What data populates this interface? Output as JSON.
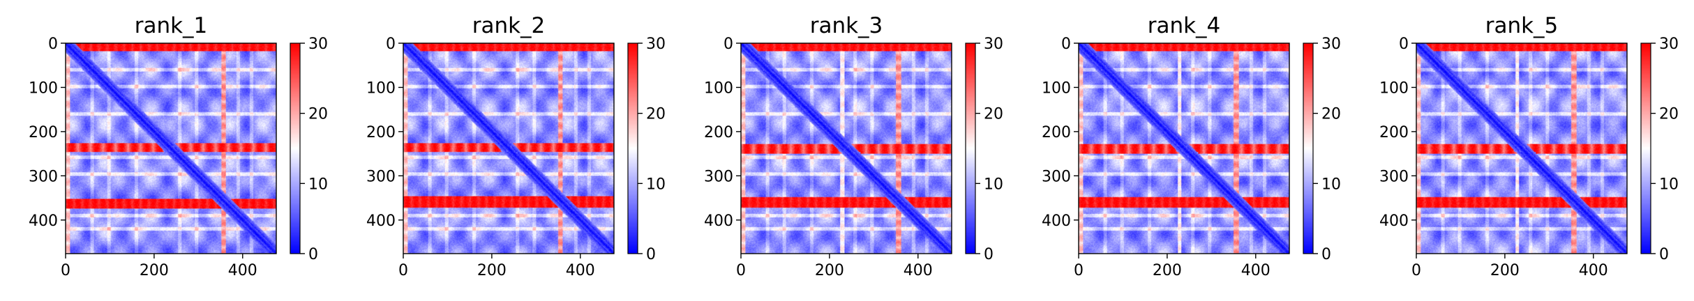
{
  "chart_data": [
    {
      "type": "heatmap",
      "title": "rank_1",
      "x_ticks": [
        0,
        200,
        400
      ],
      "y_ticks": [
        0,
        100,
        200,
        300,
        400
      ],
      "xlim": [
        0,
        476
      ],
      "ylim": [
        476,
        0
      ],
      "colorbar": {
        "ticks": [
          0,
          10,
          20,
          30
        ],
        "range": [
          0,
          30
        ],
        "colormap": "bwr"
      },
      "features": {
        "bright_rows": [
          [
            0,
            18
          ],
          [
            352,
            374
          ]
        ],
        "medium_rows": [
          [
            226,
            246
          ]
        ],
        "stripe_rows": [
          60,
          98,
          160,
          258,
          296,
          390,
          420
        ],
        "bright_cols": [
          [
            352,
            362
          ]
        ],
        "bright_cols_dim": [
          [
            0,
            10
          ]
        ],
        "mid_cols": [],
        "diagonal_kink": [
          350,
          360
        ]
      }
    },
    {
      "type": "heatmap",
      "title": "rank_2",
      "x_ticks": [
        0,
        200,
        400
      ],
      "y_ticks": [
        0,
        100,
        200,
        300,
        400
      ],
      "xlim": [
        0,
        476
      ],
      "ylim": [
        476,
        0
      ],
      "colorbar": {
        "ticks": [
          0,
          10,
          20,
          30
        ],
        "range": [
          0,
          30
        ],
        "colormap": "bwr"
      },
      "features": {
        "bright_rows": [
          [
            0,
            18
          ],
          [
            346,
            372
          ]
        ],
        "medium_rows": [
          [
            226,
            246
          ]
        ],
        "stripe_rows": [
          60,
          98,
          160,
          258,
          296,
          390,
          420
        ],
        "bright_cols": [
          [
            350,
            360
          ]
        ],
        "bright_cols_dim": [
          [
            0,
            10
          ]
        ],
        "mid_cols": [],
        "diagonal_kink": [
          340,
          360
        ]
      }
    },
    {
      "type": "heatmap",
      "title": "rank_3",
      "x_ticks": [
        0,
        200,
        400
      ],
      "y_ticks": [
        0,
        100,
        200,
        300,
        400
      ],
      "xlim": [
        0,
        476
      ],
      "ylim": [
        476,
        0
      ],
      "colorbar": {
        "ticks": [
          0,
          10,
          20,
          30
        ],
        "range": [
          0,
          30
        ],
        "colormap": "bwr"
      },
      "features": {
        "bright_rows": [
          [
            0,
            18
          ],
          [
            348,
            372
          ]
        ],
        "medium_rows": [
          [
            228,
            250
          ]
        ],
        "stripe_rows": [
          60,
          98,
          160,
          258,
          296,
          390,
          420
        ],
        "bright_cols": [
          [
            350,
            362
          ]
        ],
        "bright_cols_dim": [
          [
            0,
            10
          ]
        ],
        "mid_cols": [
          [
            224,
            234
          ]
        ],
        "diagonal_kink": [
          345,
          358
        ]
      }
    },
    {
      "type": "heatmap",
      "title": "rank_4",
      "x_ticks": [
        0,
        200,
        400
      ],
      "y_ticks": [
        0,
        100,
        200,
        300,
        400
      ],
      "xlim": [
        0,
        476
      ],
      "ylim": [
        476,
        0
      ],
      "colorbar": {
        "ticks": [
          0,
          10,
          20,
          30
        ],
        "range": [
          0,
          30
        ],
        "colormap": "bwr"
      },
      "features": {
        "bright_rows": [
          [
            0,
            18
          ],
          [
            348,
            372
          ]
        ],
        "medium_rows": [
          [
            228,
            250
          ]
        ],
        "stripe_rows": [
          60,
          98,
          160,
          258,
          296,
          390,
          420
        ],
        "bright_cols": [
          [
            350,
            362
          ]
        ],
        "bright_cols_dim": [
          [
            0,
            10
          ]
        ],
        "mid_cols": [
          [
            224,
            232
          ]
        ],
        "diagonal_kink": [
          348,
          358
        ]
      }
    },
    {
      "type": "heatmap",
      "title": "rank_5",
      "x_ticks": [
        0,
        200,
        400
      ],
      "y_ticks": [
        0,
        100,
        200,
        300,
        400
      ],
      "xlim": [
        0,
        476
      ],
      "ylim": [
        476,
        0
      ],
      "colorbar": {
        "ticks": [
          0,
          10,
          20,
          30
        ],
        "range": [
          0,
          30
        ],
        "colormap": "bwr"
      },
      "features": {
        "bright_rows": [
          [
            0,
            18
          ],
          [
            348,
            372
          ]
        ],
        "medium_rows": [
          [
            228,
            250
          ]
        ],
        "stripe_rows": [
          60,
          98,
          160,
          258,
          296,
          390,
          420
        ],
        "bright_cols": [
          [
            350,
            362
          ]
        ],
        "bright_cols_dim": [
          [
            0,
            10
          ]
        ],
        "mid_cols": [
          [
            224,
            232
          ]
        ],
        "diagonal_kink": [
          348,
          358
        ]
      }
    }
  ]
}
